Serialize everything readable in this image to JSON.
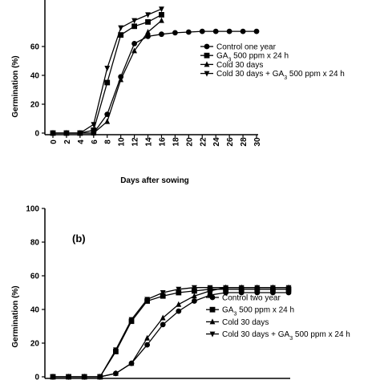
{
  "chart_data": [
    {
      "type": "line",
      "panel_label": "",
      "xlabel": "Days after sowing",
      "ylabel": "Germination (%)",
      "xlim": [
        0,
        30
      ],
      "ylim": [
        0,
        100
      ],
      "xticks": [
        0,
        2,
        4,
        6,
        8,
        10,
        12,
        14,
        16,
        18,
        20,
        22,
        24,
        26,
        28,
        30
      ],
      "yticks": [
        0,
        20,
        40,
        60
      ],
      "legend_position": "center-right",
      "series": [
        {
          "name": "Control one year",
          "marker": "circle",
          "x": [
            0,
            2,
            4,
            6,
            8,
            10,
            12,
            14,
            16,
            18,
            20,
            22,
            24,
            26,
            28,
            30
          ],
          "y": [
            0,
            0,
            0,
            0,
            13,
            39,
            62,
            67,
            68.5,
            69.5,
            70,
            70.5,
            70.5,
            70.5,
            70.5,
            70.5
          ]
        },
        {
          "name": "GA|3| 500 ppm x 24 h",
          "marker": "square",
          "x": [
            0,
            2,
            4,
            6,
            8,
            10,
            12,
            14,
            16
          ],
          "y": [
            0,
            0,
            0,
            2,
            35,
            68,
            74,
            77,
            82
          ]
        },
        {
          "name": "Cold 30 days",
          "marker": "triangle-up",
          "x": [
            0,
            2,
            4,
            6,
            8,
            10,
            12,
            14,
            16
          ],
          "y": [
            0,
            0,
            0,
            0,
            8,
            37,
            57,
            70,
            78
          ]
        },
        {
          "name": "Cold 30 days + GA|3| 500 ppm x 24 h",
          "marker": "triangle-down",
          "x": [
            0,
            2,
            4,
            6,
            8,
            10,
            12,
            14,
            16
          ],
          "y": [
            0,
            0,
            0,
            6,
            45,
            73,
            78,
            82,
            86
          ]
        }
      ]
    },
    {
      "type": "line",
      "panel_label": "(b)",
      "xlabel": "",
      "ylabel": "Germination (%)",
      "xlim": [
        0,
        30
      ],
      "ylim": [
        0,
        100
      ],
      "xticks": [],
      "yticks": [
        0,
        20,
        40,
        60,
        80,
        100
      ],
      "legend_position": "bottom-right",
      "series": [
        {
          "name": "Control two year",
          "marker": "circle",
          "x": [
            0,
            2,
            4,
            6,
            8,
            10,
            12,
            14,
            16,
            18,
            20,
            22,
            24,
            26,
            28,
            30
          ],
          "y": [
            0,
            0,
            0,
            0,
            2,
            8,
            19,
            31,
            39,
            45,
            48.5,
            50,
            50,
            50,
            50,
            50
          ]
        },
        {
          "name": "GA|3| 500 ppm x 24 h",
          "marker": "square",
          "x": [
            0,
            2,
            4,
            6,
            8,
            10,
            12,
            14,
            16,
            18,
            20,
            22,
            24,
            26,
            28,
            30
          ],
          "y": [
            0,
            0,
            0,
            0,
            15,
            33,
            45,
            48,
            50,
            51,
            52,
            52,
            52,
            52,
            52,
            52
          ]
        },
        {
          "name": "Cold 30 days",
          "marker": "triangle-up",
          "x": [
            0,
            2,
            4,
            6,
            8,
            10,
            12,
            14,
            16,
            18,
            20,
            22,
            24,
            26,
            28,
            30
          ],
          "y": [
            0,
            0,
            0,
            0,
            2,
            8,
            23,
            35,
            43,
            48,
            51,
            53,
            53,
            53,
            53,
            53
          ]
        },
        {
          "name": "Cold 30 days + GA|3| 500 ppm x 24 h",
          "marker": "triangle-down",
          "x": [
            0,
            2,
            4,
            6,
            8,
            10,
            12,
            14,
            16,
            18,
            20,
            22,
            24,
            26,
            28,
            30
          ],
          "y": [
            0,
            0,
            0,
            0,
            16,
            34,
            46,
            50,
            52,
            53,
            53,
            53,
            53,
            53,
            53,
            53
          ]
        }
      ]
    }
  ]
}
